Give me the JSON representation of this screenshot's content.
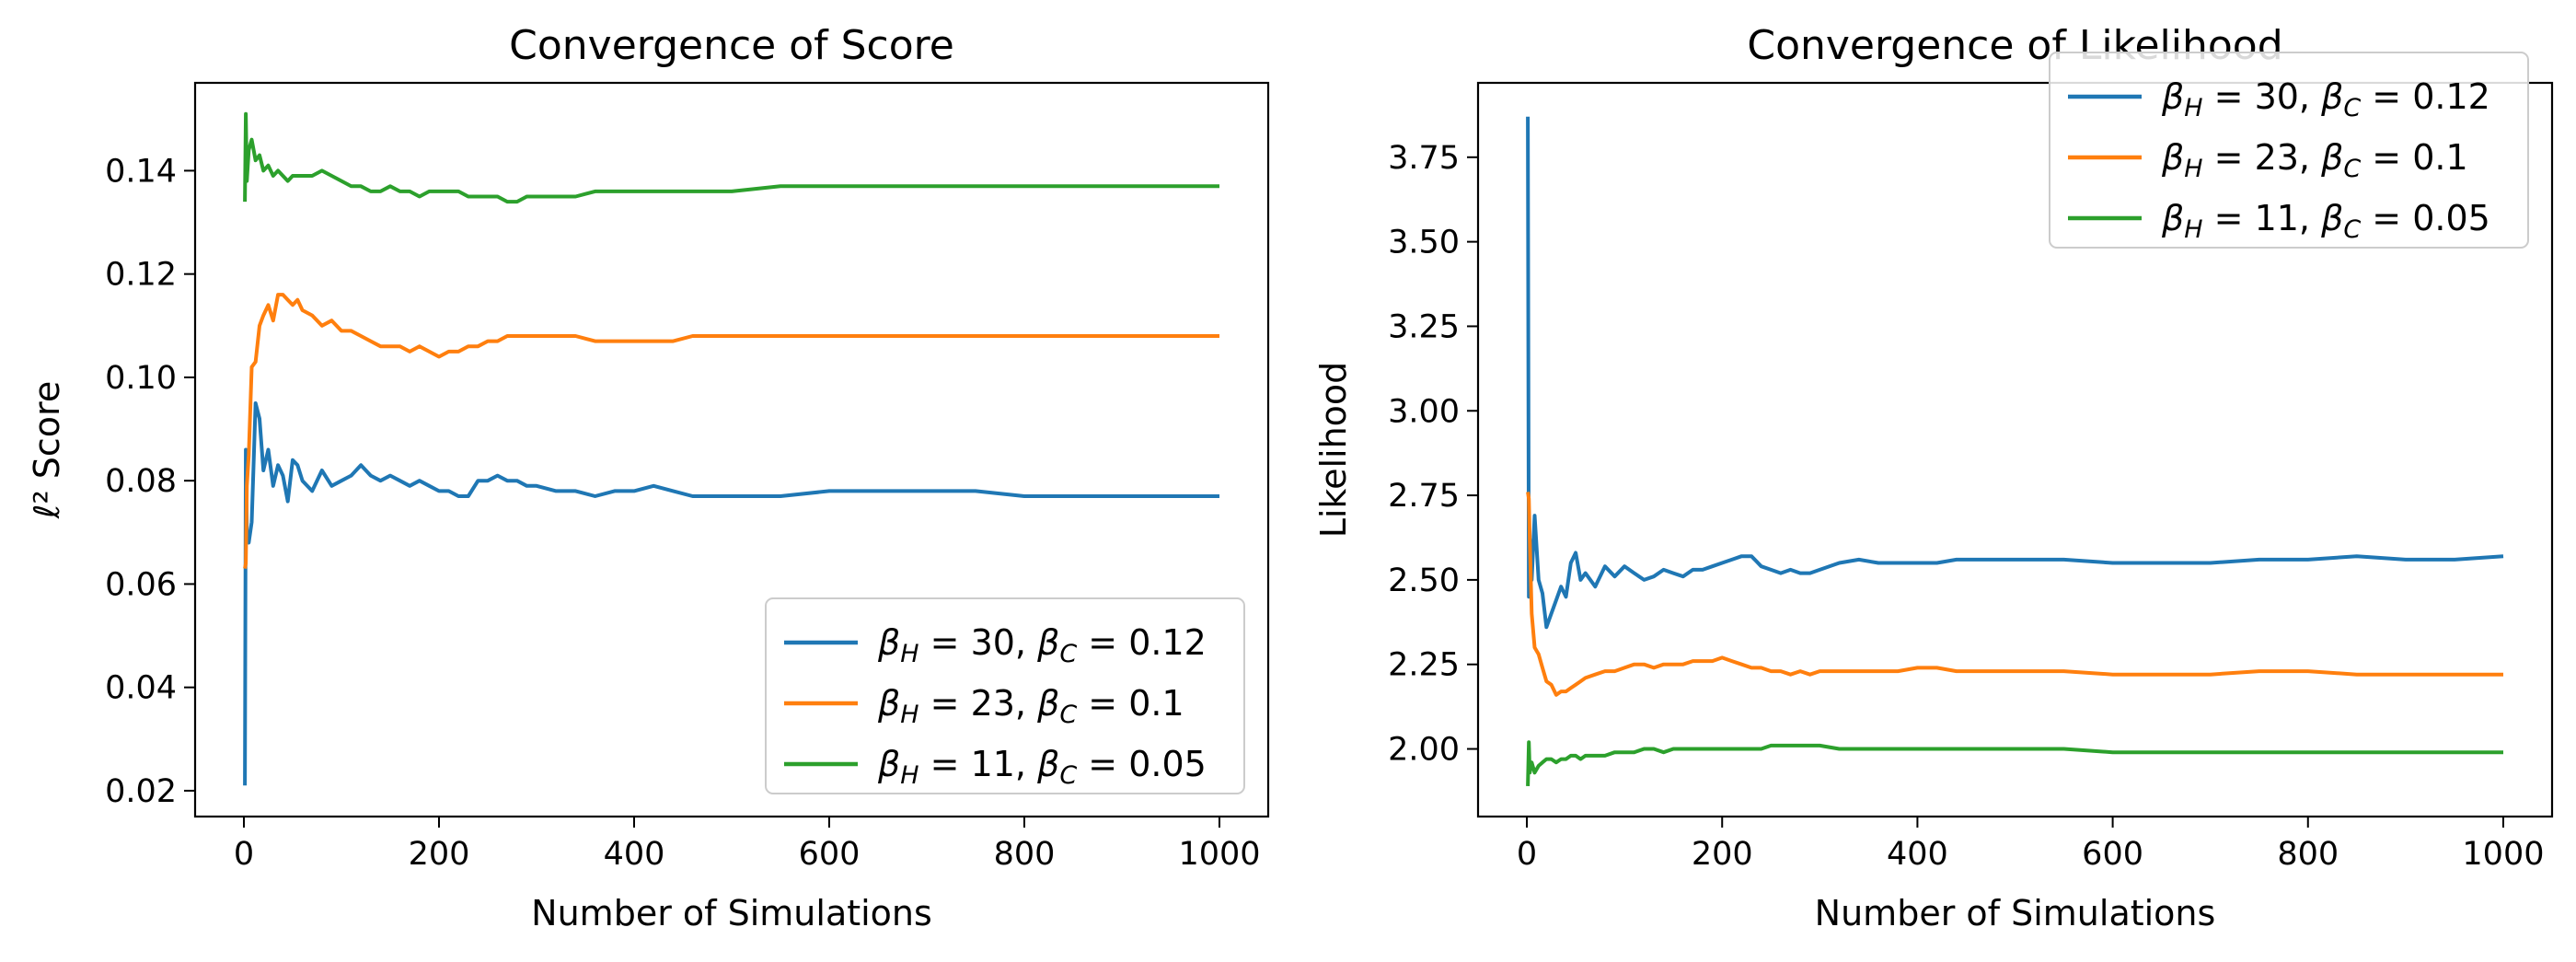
{
  "colors": {
    "series1": "#1f77b4",
    "series2": "#ff7f0e",
    "series3": "#2ca02c"
  },
  "chart_data": [
    {
      "type": "line",
      "title": "Convergence of Score",
      "xlabel": "Number of Simulations",
      "ylabel": "ℓ² Score",
      "xlim": [
        -50,
        1050
      ],
      "ylim": [
        0.015,
        0.157
      ],
      "xticks": [
        0,
        200,
        400,
        600,
        800,
        1000
      ],
      "xtick_labels": [
        "0",
        "200",
        "400",
        "600",
        "800",
        "1000"
      ],
      "yticks": [
        0.02,
        0.04,
        0.06,
        0.08,
        0.1,
        0.12,
        0.14
      ],
      "ytick_labels": [
        "0.02",
        "0.04",
        "0.06",
        "0.08",
        "0.10",
        "0.12",
        "0.14"
      ],
      "legend_position": "lower right",
      "grid": false,
      "series": [
        {
          "name": "βH = 30, βC = 0.12",
          "color": "#1f77b4",
          "x": [
            1,
            2,
            3,
            5,
            8,
            12,
            16,
            20,
            25,
            30,
            35,
            40,
            45,
            50,
            55,
            60,
            70,
            80,
            90,
            100,
            110,
            120,
            130,
            140,
            150,
            160,
            170,
            180,
            190,
            200,
            210,
            220,
            230,
            240,
            250,
            260,
            270,
            280,
            290,
            300,
            320,
            340,
            360,
            380,
            400,
            420,
            440,
            460,
            480,
            500,
            550,
            600,
            650,
            700,
            750,
            800,
            850,
            900,
            950,
            1000
          ],
          "y": [
            0.021,
            0.086,
            0.07,
            0.068,
            0.072,
            0.095,
            0.092,
            0.082,
            0.086,
            0.079,
            0.083,
            0.081,
            0.076,
            0.084,
            0.083,
            0.08,
            0.078,
            0.082,
            0.079,
            0.08,
            0.081,
            0.083,
            0.081,
            0.08,
            0.081,
            0.08,
            0.079,
            0.08,
            0.079,
            0.078,
            0.078,
            0.077,
            0.077,
            0.08,
            0.08,
            0.081,
            0.08,
            0.08,
            0.079,
            0.079,
            0.078,
            0.078,
            0.077,
            0.078,
            0.078,
            0.079,
            0.078,
            0.077,
            0.077,
            0.077,
            0.077,
            0.078,
            0.078,
            0.078,
            0.078,
            0.077,
            0.077,
            0.077,
            0.077,
            0.077
          ]
        },
        {
          "name": "βH = 23, βC = 0.1",
          "color": "#ff7f0e",
          "x": [
            1,
            2,
            3,
            5,
            8,
            12,
            16,
            20,
            25,
            30,
            35,
            40,
            45,
            50,
            55,
            60,
            70,
            80,
            90,
            100,
            110,
            120,
            130,
            140,
            150,
            160,
            170,
            180,
            190,
            200,
            210,
            220,
            230,
            240,
            250,
            260,
            270,
            280,
            290,
            300,
            320,
            340,
            360,
            380,
            400,
            420,
            440,
            460,
            480,
            500,
            550,
            600,
            650,
            700,
            750,
            800,
            850,
            900,
            950,
            1000
          ],
          "y": [
            0.063,
            0.064,
            0.079,
            0.085,
            0.102,
            0.103,
            0.11,
            0.112,
            0.114,
            0.111,
            0.116,
            0.116,
            0.115,
            0.114,
            0.115,
            0.113,
            0.112,
            0.11,
            0.111,
            0.109,
            0.109,
            0.108,
            0.107,
            0.106,
            0.106,
            0.106,
            0.105,
            0.106,
            0.105,
            0.104,
            0.105,
            0.105,
            0.106,
            0.106,
            0.107,
            0.107,
            0.108,
            0.108,
            0.108,
            0.108,
            0.108,
            0.108,
            0.107,
            0.107,
            0.107,
            0.107,
            0.107,
            0.108,
            0.108,
            0.108,
            0.108,
            0.108,
            0.108,
            0.108,
            0.108,
            0.108,
            0.108,
            0.108,
            0.108,
            0.108
          ]
        },
        {
          "name": "βH = 11, βC = 0.05",
          "color": "#2ca02c",
          "x": [
            1,
            2,
            3,
            5,
            8,
            12,
            16,
            20,
            25,
            30,
            35,
            40,
            45,
            50,
            55,
            60,
            70,
            80,
            90,
            100,
            110,
            120,
            130,
            140,
            150,
            160,
            170,
            180,
            190,
            200,
            210,
            220,
            230,
            240,
            250,
            260,
            270,
            280,
            290,
            300,
            320,
            340,
            360,
            380,
            400,
            420,
            440,
            460,
            480,
            500,
            550,
            600,
            650,
            700,
            750,
            800,
            850,
            900,
            950,
            1000
          ],
          "y": [
            0.134,
            0.151,
            0.138,
            0.144,
            0.146,
            0.142,
            0.143,
            0.14,
            0.141,
            0.139,
            0.14,
            0.139,
            0.138,
            0.139,
            0.139,
            0.139,
            0.139,
            0.14,
            0.139,
            0.138,
            0.137,
            0.137,
            0.136,
            0.136,
            0.137,
            0.136,
            0.136,
            0.135,
            0.136,
            0.136,
            0.136,
            0.136,
            0.135,
            0.135,
            0.135,
            0.135,
            0.134,
            0.134,
            0.135,
            0.135,
            0.135,
            0.135,
            0.136,
            0.136,
            0.136,
            0.136,
            0.136,
            0.136,
            0.136,
            0.136,
            0.137,
            0.137,
            0.137,
            0.137,
            0.137,
            0.137,
            0.137,
            0.137,
            0.137,
            0.137
          ]
        }
      ]
    },
    {
      "type": "line",
      "title": "Convergence of Likelihood",
      "xlabel": "Number of Simulations",
      "ylabel": "Likelihood",
      "xlim": [
        -50,
        1050
      ],
      "ylim": [
        1.8,
        3.97
      ],
      "xticks": [
        0,
        200,
        400,
        600,
        800,
        1000
      ],
      "xtick_labels": [
        "0",
        "200",
        "400",
        "600",
        "800",
        "1000"
      ],
      "yticks": [
        2.0,
        2.25,
        2.5,
        2.75,
        3.0,
        3.25,
        3.5,
        3.75
      ],
      "ytick_labels": [
        "2.00",
        "2.25",
        "2.50",
        "2.75",
        "3.00",
        "3.25",
        "3.50",
        "3.75"
      ],
      "legend_position": "upper right",
      "grid": false,
      "series": [
        {
          "name": "βH = 30, βC = 0.12",
          "color": "#1f77b4",
          "x": [
            1,
            2,
            3,
            5,
            8,
            12,
            16,
            20,
            25,
            30,
            35,
            40,
            45,
            50,
            55,
            60,
            70,
            80,
            90,
            100,
            110,
            120,
            130,
            140,
            150,
            160,
            170,
            180,
            190,
            200,
            210,
            220,
            230,
            240,
            250,
            260,
            270,
            280,
            290,
            300,
            320,
            340,
            360,
            380,
            400,
            420,
            440,
            460,
            480,
            500,
            550,
            600,
            650,
            700,
            750,
            800,
            850,
            900,
            950,
            1000
          ],
          "y": [
            3.87,
            2.45,
            2.62,
            2.5,
            2.69,
            2.5,
            2.46,
            2.36,
            2.4,
            2.44,
            2.48,
            2.45,
            2.55,
            2.58,
            2.5,
            2.52,
            2.48,
            2.54,
            2.51,
            2.54,
            2.52,
            2.5,
            2.51,
            2.53,
            2.52,
            2.51,
            2.53,
            2.53,
            2.54,
            2.55,
            2.56,
            2.57,
            2.57,
            2.54,
            2.53,
            2.52,
            2.53,
            2.52,
            2.52,
            2.53,
            2.55,
            2.56,
            2.55,
            2.55,
            2.55,
            2.55,
            2.56,
            2.56,
            2.56,
            2.56,
            2.56,
            2.55,
            2.55,
            2.55,
            2.56,
            2.56,
            2.57,
            2.56,
            2.56,
            2.57
          ]
        },
        {
          "name": "βH = 23, βC = 0.1",
          "color": "#ff7f0e",
          "x": [
            1,
            2,
            3,
            5,
            8,
            12,
            16,
            20,
            25,
            30,
            35,
            40,
            45,
            50,
            55,
            60,
            70,
            80,
            90,
            100,
            110,
            120,
            130,
            140,
            150,
            160,
            170,
            180,
            190,
            200,
            210,
            220,
            230,
            240,
            250,
            260,
            270,
            280,
            290,
            300,
            320,
            340,
            360,
            380,
            400,
            420,
            440,
            460,
            480,
            500,
            550,
            600,
            650,
            700,
            750,
            800,
            850,
            900,
            950,
            1000
          ],
          "y": [
            2.76,
            2.74,
            2.62,
            2.4,
            2.3,
            2.28,
            2.24,
            2.2,
            2.19,
            2.16,
            2.17,
            2.17,
            2.18,
            2.19,
            2.2,
            2.21,
            2.22,
            2.23,
            2.23,
            2.24,
            2.25,
            2.25,
            2.24,
            2.25,
            2.25,
            2.25,
            2.26,
            2.26,
            2.26,
            2.27,
            2.26,
            2.25,
            2.24,
            2.24,
            2.23,
            2.23,
            2.22,
            2.23,
            2.22,
            2.23,
            2.23,
            2.23,
            2.23,
            2.23,
            2.24,
            2.24,
            2.23,
            2.23,
            2.23,
            2.23,
            2.23,
            2.22,
            2.22,
            2.22,
            2.23,
            2.23,
            2.22,
            2.22,
            2.22,
            2.22
          ]
        },
        {
          "name": "βH = 11, βC = 0.05",
          "color": "#2ca02c",
          "x": [
            1,
            2,
            3,
            5,
            8,
            12,
            16,
            20,
            25,
            30,
            35,
            40,
            45,
            50,
            55,
            60,
            70,
            80,
            90,
            100,
            110,
            120,
            130,
            140,
            150,
            160,
            170,
            180,
            190,
            200,
            210,
            220,
            230,
            240,
            250,
            260,
            270,
            280,
            290,
            300,
            320,
            340,
            360,
            380,
            400,
            420,
            440,
            460,
            480,
            500,
            550,
            600,
            650,
            700,
            750,
            800,
            850,
            900,
            950,
            1000
          ],
          "y": [
            1.89,
            2.02,
            1.93,
            1.96,
            1.93,
            1.95,
            1.96,
            1.97,
            1.97,
            1.96,
            1.97,
            1.97,
            1.98,
            1.98,
            1.97,
            1.98,
            1.98,
            1.98,
            1.99,
            1.99,
            1.99,
            2.0,
            2.0,
            1.99,
            2.0,
            2.0,
            2.0,
            2.0,
            2.0,
            2.0,
            2.0,
            2.0,
            2.0,
            2.0,
            2.01,
            2.01,
            2.01,
            2.01,
            2.01,
            2.01,
            2.0,
            2.0,
            2.0,
            2.0,
            2.0,
            2.0,
            2.0,
            2.0,
            2.0,
            2.0,
            2.0,
            1.99,
            1.99,
            1.99,
            1.99,
            1.99,
            1.99,
            1.99,
            1.99,
            1.99
          ]
        }
      ]
    }
  ]
}
